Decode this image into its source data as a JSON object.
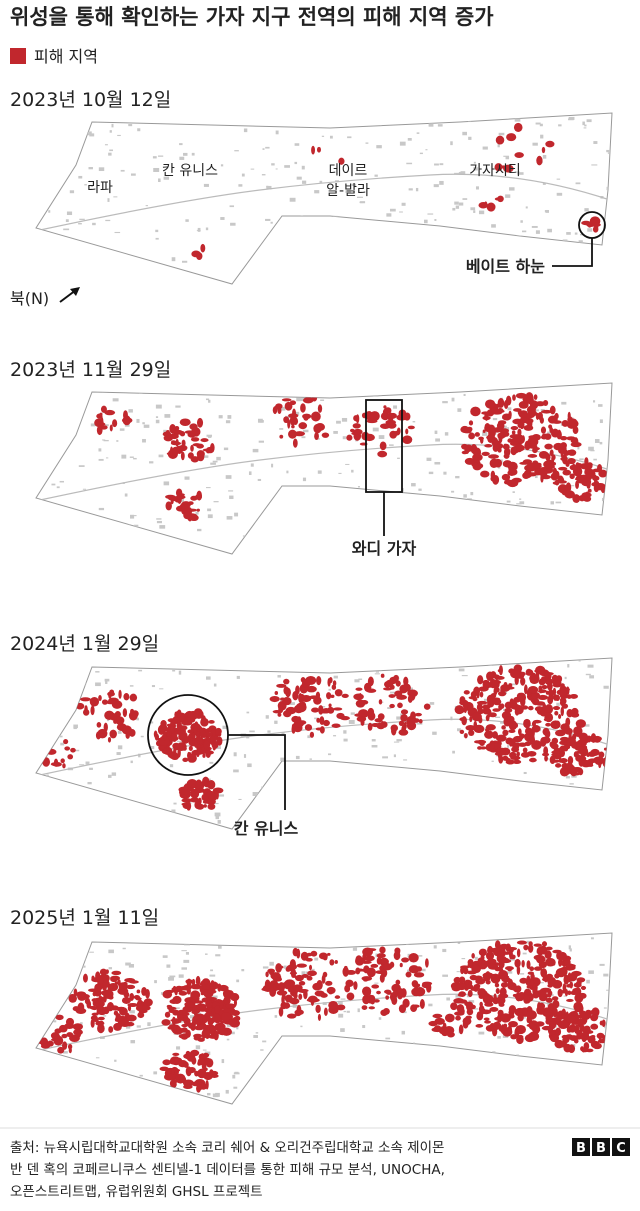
{
  "header": {
    "title": "위성을 통해 확인하는 가자 지구 전역의 피해 지역 증가",
    "legend": "피해 지역"
  },
  "panels": [
    {
      "date": "2023년 10월 12일",
      "places": [
        "라파",
        "칸 유니스",
        "데이르",
        "알-발라",
        "가자시티"
      ],
      "annotation": "베이트 하눈",
      "north": "북(N)"
    },
    {
      "date": "2023년 11월 29일",
      "annotation": "와디 가자"
    },
    {
      "date": "2024년 1월 29일",
      "annotation": "칸 유니스"
    },
    {
      "date": "2025년 1월 11일"
    }
  ],
  "footer": {
    "source": [
      "출처: 뉴욕시립대학교대학원 소속 코리 쉐어 & 오리건주립대학교 소속 제이몬",
      "반 덴 혹의 코페르니쿠스 센티넬-1 데이터를 통한 피해 규모 분석, UNOCHA,",
      "오픈스트리트맵, 유럽위원회 GHSL 프로젝트"
    ],
    "logo": [
      "B",
      "B",
      "C"
    ]
  }
}
